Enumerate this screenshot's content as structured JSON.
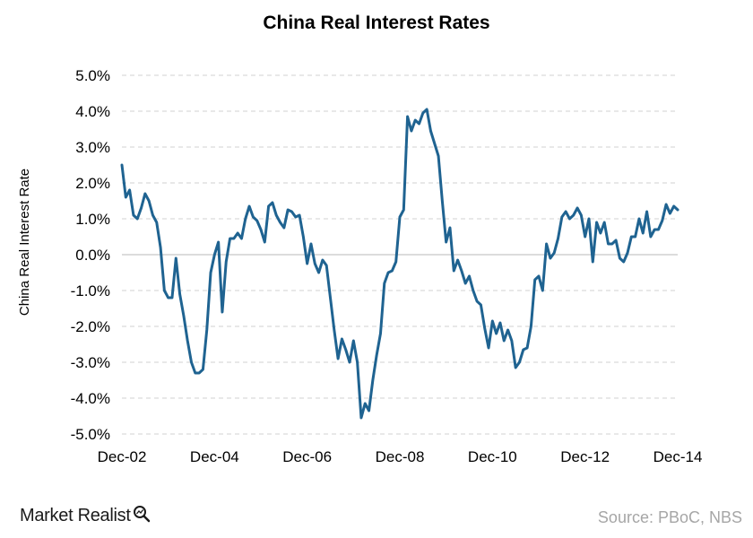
{
  "chart_data": {
    "type": "line",
    "title": "China Real Interest Rates",
    "ylabel": "China Real Interest Rate",
    "xlabel": "",
    "ylim": [
      -5.0,
      5.0
    ],
    "y_ticks": [
      "5.0%",
      "4.0%",
      "3.0%",
      "2.0%",
      "1.0%",
      "0.0%",
      "-1.0%",
      "-2.0%",
      "-3.0%",
      "-4.0%",
      "-5.0%"
    ],
    "x_ticks": [
      "Dec-02",
      "Dec-04",
      "Dec-06",
      "Dec-08",
      "Dec-10",
      "Dec-12",
      "Dec-14"
    ],
    "grid": "horizontal dashed",
    "line_color": "#1f6391",
    "series": [
      {
        "points": [
          [
            "Dec-02",
            2.5
          ],
          [
            "Jan-03",
            1.6
          ],
          [
            "Feb-03",
            1.8
          ],
          [
            "Mar-03",
            1.1
          ],
          [
            "Apr-03",
            1.0
          ],
          [
            "May-03",
            1.3
          ],
          [
            "Jun-03",
            1.7
          ],
          [
            "Jul-03",
            1.5
          ],
          [
            "Aug-03",
            1.1
          ],
          [
            "Sep-03",
            0.9
          ],
          [
            "Oct-03",
            0.2
          ],
          [
            "Nov-03",
            -1.0
          ],
          [
            "Dec-03",
            -1.2
          ],
          [
            "Jan-04",
            -1.2
          ],
          [
            "Feb-04",
            -0.1
          ],
          [
            "Mar-04",
            -1.1
          ],
          [
            "Apr-04",
            -1.7
          ],
          [
            "May-04",
            -2.4
          ],
          [
            "Jun-04",
            -3.0
          ],
          [
            "Jul-04",
            -3.3
          ],
          [
            "Aug-04",
            -3.3
          ],
          [
            "Sep-04",
            -3.2
          ],
          [
            "Oct-04",
            -2.1
          ],
          [
            "Nov-04",
            -0.5
          ],
          [
            "Dec-04",
            0.0
          ],
          [
            "Jan-05",
            0.35
          ],
          [
            "Feb-05",
            -1.6
          ],
          [
            "Mar-05",
            -0.2
          ],
          [
            "Apr-05",
            0.45
          ],
          [
            "May-05",
            0.45
          ],
          [
            "Jun-05",
            0.6
          ],
          [
            "Jul-05",
            0.45
          ],
          [
            "Aug-05",
            1.0
          ],
          [
            "Sep-05",
            1.35
          ],
          [
            "Oct-05",
            1.05
          ],
          [
            "Nov-05",
            0.95
          ],
          [
            "Dec-05",
            0.7
          ],
          [
            "Jan-06",
            0.35
          ],
          [
            "Feb-06",
            1.35
          ],
          [
            "Mar-06",
            1.45
          ],
          [
            "Apr-06",
            1.1
          ],
          [
            "May-06",
            0.9
          ],
          [
            "Jun-06",
            0.75
          ],
          [
            "Jul-06",
            1.25
          ],
          [
            "Aug-06",
            1.2
          ],
          [
            "Sep-06",
            1.05
          ],
          [
            "Oct-06",
            1.1
          ],
          [
            "Nov-06",
            0.5
          ],
          [
            "Dec-06",
            -0.25
          ],
          [
            "Jan-07",
            0.3
          ],
          [
            "Feb-07",
            -0.25
          ],
          [
            "Mar-07",
            -0.5
          ],
          [
            "Apr-07",
            -0.15
          ],
          [
            "May-07",
            -0.3
          ],
          [
            "Jun-07",
            -1.2
          ],
          [
            "Jul-07",
            -2.1
          ],
          [
            "Aug-07",
            -2.9
          ],
          [
            "Sep-07",
            -2.35
          ],
          [
            "Oct-07",
            -2.65
          ],
          [
            "Nov-07",
            -3.0
          ],
          [
            "Dec-07",
            -2.4
          ],
          [
            "Jan-08",
            -3.0
          ],
          [
            "Feb-08",
            -4.55
          ],
          [
            "Mar-08",
            -4.15
          ],
          [
            "Apr-08",
            -4.35
          ],
          [
            "May-08",
            -3.5
          ],
          [
            "Jun-08",
            -2.8
          ],
          [
            "Jul-08",
            -2.2
          ],
          [
            "Aug-08",
            -0.8
          ],
          [
            "Sep-08",
            -0.5
          ],
          [
            "Oct-08",
            -0.45
          ],
          [
            "Nov-08",
            -0.2
          ],
          [
            "Dec-08",
            1.05
          ],
          [
            "Jan-09",
            1.25
          ],
          [
            "Feb-09",
            3.85
          ],
          [
            "Mar-09",
            3.45
          ],
          [
            "Apr-09",
            3.75
          ],
          [
            "May-09",
            3.65
          ],
          [
            "Jun-09",
            3.95
          ],
          [
            "Jul-09",
            4.05
          ],
          [
            "Aug-09",
            3.45
          ],
          [
            "Sep-09",
            3.1
          ],
          [
            "Oct-09",
            2.75
          ],
          [
            "Nov-09",
            1.5
          ],
          [
            "Dec-09",
            0.35
          ],
          [
            "Jan-10",
            0.75
          ],
          [
            "Feb-10",
            -0.45
          ],
          [
            "Mar-10",
            -0.15
          ],
          [
            "Apr-10",
            -0.45
          ],
          [
            "May-10",
            -0.8
          ],
          [
            "Jun-10",
            -0.6
          ],
          [
            "Jul-10",
            -1.0
          ],
          [
            "Aug-10",
            -1.3
          ],
          [
            "Sep-10",
            -1.4
          ],
          [
            "Oct-10",
            -2.05
          ],
          [
            "Nov-10",
            -2.6
          ],
          [
            "Dec-10",
            -1.85
          ],
          [
            "Jan-11",
            -2.2
          ],
          [
            "Feb-11",
            -1.9
          ],
          [
            "Mar-11",
            -2.4
          ],
          [
            "Apr-11",
            -2.1
          ],
          [
            "May-11",
            -2.4
          ],
          [
            "Jun-11",
            -3.15
          ],
          [
            "Jul-11",
            -3.0
          ],
          [
            "Aug-11",
            -2.65
          ],
          [
            "Sep-11",
            -2.6
          ],
          [
            "Oct-11",
            -2.0
          ],
          [
            "Nov-11",
            -0.7
          ],
          [
            "Dec-11",
            -0.6
          ],
          [
            "Jan-12",
            -1.0
          ],
          [
            "Feb-12",
            0.3
          ],
          [
            "Mar-12",
            -0.1
          ],
          [
            "Apr-12",
            0.05
          ],
          [
            "May-12",
            0.45
          ],
          [
            "Jun-12",
            1.05
          ],
          [
            "Jul-12",
            1.2
          ],
          [
            "Aug-12",
            1.0
          ],
          [
            "Sep-12",
            1.1
          ],
          [
            "Oct-12",
            1.3
          ],
          [
            "Nov-12",
            1.1
          ],
          [
            "Dec-12",
            0.5
          ],
          [
            "Jan-13",
            1.0
          ],
          [
            "Feb-13",
            -0.2
          ],
          [
            "Mar-13",
            0.9
          ],
          [
            "Apr-13",
            0.6
          ],
          [
            "May-13",
            0.9
          ],
          [
            "Jun-13",
            0.3
          ],
          [
            "Jul-13",
            0.3
          ],
          [
            "Aug-13",
            0.4
          ],
          [
            "Sep-13",
            -0.1
          ],
          [
            "Oct-13",
            -0.2
          ],
          [
            "Nov-13",
            0.05
          ],
          [
            "Dec-13",
            0.5
          ],
          [
            "Jan-14",
            0.5
          ],
          [
            "Feb-14",
            1.0
          ],
          [
            "Mar-14",
            0.6
          ],
          [
            "Apr-14",
            1.2
          ],
          [
            "May-14",
            0.5
          ],
          [
            "Jun-14",
            0.7
          ],
          [
            "Jul-14",
            0.7
          ],
          [
            "Aug-14",
            0.95
          ],
          [
            "Sep-14",
            1.4
          ],
          [
            "Oct-14",
            1.15
          ],
          [
            "Nov-14",
            1.35
          ],
          [
            "Dec-14",
            1.25
          ]
        ]
      }
    ]
  },
  "branding": {
    "logo_text": "Market Realist"
  },
  "source_text": "Source: PBoC, NBS"
}
